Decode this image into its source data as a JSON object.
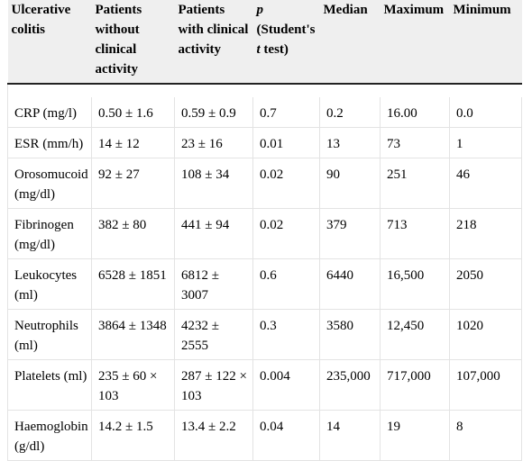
{
  "table": {
    "headers": {
      "col1": "Ulcerative colitis",
      "col2": "Patients without clinical activity",
      "col3": "Patients with clinical activity",
      "col4_p": "p",
      "col4_rest": " (Student's ",
      "col4_t": "t",
      "col4_tail": " test)",
      "col5": "Median",
      "col6": "Maximum",
      "col7": "Minimum"
    },
    "rows": [
      {
        "name": "CRP (mg/l)",
        "without": "0.50 ± 1.6",
        "with": "0.59 ± 0.9",
        "p": "0.7",
        "median": "0.2",
        "max": "16.00",
        "min": "0.0"
      },
      {
        "name": "ESR (mm/h)",
        "without": "14 ± 12",
        "with": "23 ± 16",
        "p": "0.01",
        "median": "13",
        "max": "73",
        "min": "1"
      },
      {
        "name": "Orosomucoid (mg/dl)",
        "without": "92 ± 27",
        "with": "108 ± 34",
        "p": "0.02",
        "median": "90",
        "max": "251",
        "min": "46"
      },
      {
        "name": "Fibrinogen (mg/dl)",
        "without": "382 ± 80",
        "with": "441 ± 94",
        "p": "0.02",
        "median": "379",
        "max": "713",
        "min": "218"
      },
      {
        "name": "Leukocytes (ml)",
        "without": "6528 ± 1851",
        "with": "6812 ± 3007",
        "p": "0.6",
        "median": "6440",
        "max": "16,500",
        "min": "2050"
      },
      {
        "name": "Neutrophils (ml)",
        "without": "3864 ± 1348",
        "with": "4232 ± 2555",
        "p": "0.3",
        "median": "3580",
        "max": "12,450",
        "min": "1020"
      },
      {
        "name": "Platelets (ml)",
        "without": "235 ± 60 × 103",
        "with": "287 ± 122 × 103",
        "p": "0.004",
        "median": "235,000",
        "max": "717,000",
        "min": "107,000"
      },
      {
        "name": "Haemoglobin (g/dl)",
        "without": "14.2 ± 1.5",
        "with": "13.4 ± 2.2",
        "p": "0.04",
        "median": "14",
        "max": "19",
        "min": "8"
      }
    ]
  }
}
